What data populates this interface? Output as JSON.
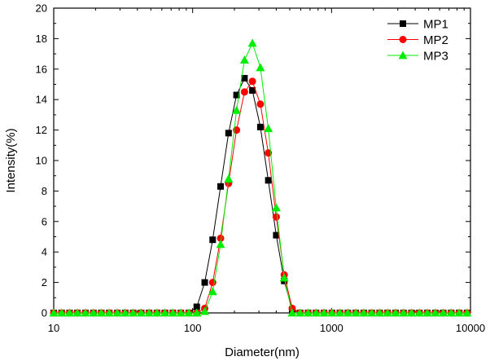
{
  "chart_data": {
    "type": "scatter",
    "xlabel": "Diameter(nm)",
    "ylabel": "Intensity(%)",
    "xscale": "log",
    "xlim": [
      10,
      10000
    ],
    "ylim": [
      0,
      20
    ],
    "xticks": [
      10,
      100,
      1000,
      10000
    ],
    "xtick_labels": [
      "10",
      "100",
      "1000",
      "10000"
    ],
    "yticks": [
      0,
      2,
      4,
      6,
      8,
      10,
      12,
      14,
      16,
      18,
      20
    ],
    "ytick_labels": [
      "0",
      "2",
      "4",
      "6",
      "8",
      "10",
      "12",
      "14",
      "16",
      "18",
      "20"
    ],
    "grid": false,
    "legend_position": "top-right",
    "series": [
      {
        "name": "MP1",
        "color": "#000000",
        "marker": "square",
        "line": "connected",
        "x": [
          10,
          11.4,
          13,
          14.8,
          16.9,
          19.3,
          22,
          25.1,
          28.7,
          32.7,
          37.3,
          42.6,
          48.6,
          55.4,
          63.2,
          72.1,
          82.3,
          93.9,
          107.1,
          122.2,
          139.4,
          159,
          181.4,
          207,
          236.2,
          269.4,
          307.4,
          350.6,
          400,
          456.4,
          520.7,
          594.1,
          677.7,
          773.2,
          882.2,
          1006.4,
          1148.2,
          1310,
          1494.5,
          1705.1,
          1945.3,
          2219.4,
          2532,
          2888.7,
          3295.7,
          3760,
          4289.7,
          4894,
          5583.5,
          6370.1,
          7267.5,
          8291.4,
          9459.6
        ],
        "y": [
          0,
          0,
          0,
          0,
          0,
          0,
          0,
          0,
          0,
          0,
          0,
          0,
          0,
          0,
          0,
          0,
          0,
          0,
          0.4,
          2,
          4.8,
          8.3,
          11.8,
          14.3,
          15.4,
          14.6,
          12.2,
          8.7,
          5.1,
          2.1,
          0.2,
          0,
          0,
          0,
          0,
          0,
          0,
          0,
          0,
          0,
          0,
          0,
          0,
          0,
          0,
          0,
          0,
          0,
          0,
          0,
          0,
          0,
          0
        ]
      },
      {
        "name": "MP2",
        "color": "#ff0000",
        "marker": "circle",
        "line": "connected",
        "x": [
          10,
          11.4,
          13,
          14.8,
          16.9,
          19.3,
          22,
          25.1,
          28.7,
          32.7,
          37.3,
          42.6,
          48.6,
          55.4,
          63.2,
          72.1,
          82.3,
          93.9,
          107.1,
          122.2,
          139.4,
          159,
          181.4,
          207,
          236.2,
          269.4,
          307.4,
          350.6,
          400,
          456.4,
          520.7,
          594.1,
          677.7,
          773.2,
          882.2,
          1006.4,
          1148.2,
          1310,
          1494.5,
          1705.1,
          1945.3,
          2219.4,
          2532,
          2888.7,
          3295.7,
          3760,
          4289.7,
          4894,
          5583.5,
          6370.1,
          7267.5,
          8291.4,
          9459.6
        ],
        "y": [
          0,
          0,
          0,
          0,
          0,
          0,
          0,
          0,
          0,
          0,
          0,
          0,
          0,
          0,
          0,
          0,
          0,
          0,
          0,
          0.3,
          2,
          4.9,
          8.5,
          12,
          14.5,
          15.2,
          13.7,
          10.5,
          6.3,
          2.5,
          0.3,
          0,
          0,
          0,
          0,
          0,
          0,
          0,
          0,
          0,
          0,
          0,
          0,
          0,
          0,
          0,
          0,
          0,
          0,
          0,
          0,
          0,
          0
        ]
      },
      {
        "name": "MP3",
        "color": "#00ee00",
        "marker": "triangle",
        "line": "connected",
        "x": [
          10,
          11.4,
          13,
          14.8,
          16.9,
          19.3,
          22,
          25.1,
          28.7,
          32.7,
          37.3,
          42.6,
          48.6,
          55.4,
          63.2,
          72.1,
          82.3,
          93.9,
          107.1,
          122.2,
          139.4,
          159,
          181.4,
          207,
          236.2,
          269.4,
          307.4,
          350.6,
          400,
          456.4,
          520.7,
          594.1,
          677.7,
          773.2,
          882.2,
          1006.4,
          1148.2,
          1310,
          1494.5,
          1705.1,
          1945.3,
          2219.4,
          2532,
          2888.7,
          3295.7,
          3760,
          4289.7,
          4894,
          5583.5,
          6370.1,
          7267.5,
          8291.4,
          9459.6
        ],
        "y": [
          0,
          0,
          0,
          0,
          0,
          0,
          0,
          0,
          0,
          0,
          0,
          0,
          0,
          0,
          0,
          0,
          0,
          0,
          0,
          0.1,
          1.4,
          4.5,
          8.8,
          13.3,
          16.6,
          17.7,
          16.1,
          12.1,
          6.9,
          2.3,
          0,
          0,
          0,
          0,
          0,
          0,
          0,
          0,
          0,
          0,
          0,
          0,
          0,
          0,
          0,
          0,
          0,
          0,
          0,
          0,
          0,
          0,
          0
        ]
      }
    ]
  }
}
